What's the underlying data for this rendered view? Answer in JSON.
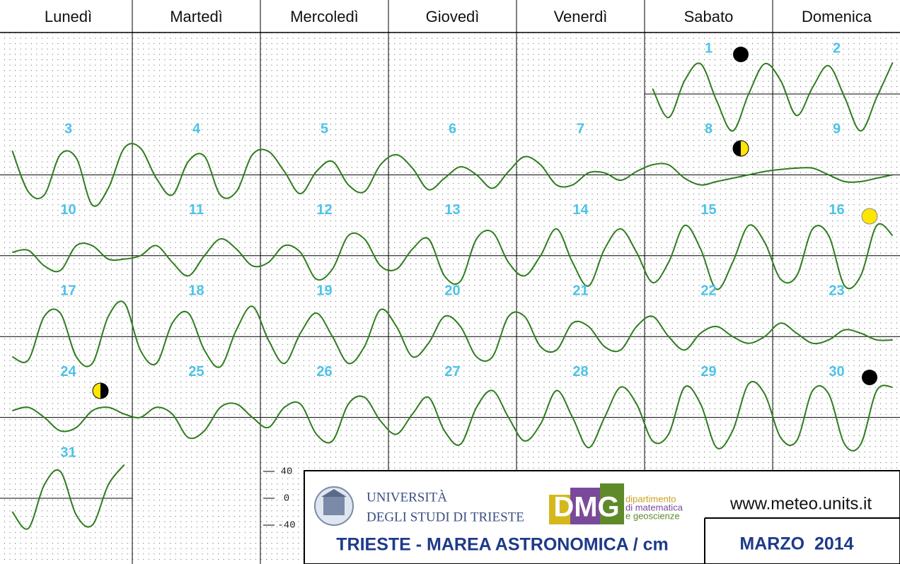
{
  "weekdays": [
    "Lunedì",
    "Martedì",
    "Mercoledì",
    "Giovedì",
    "Venerdì",
    "Sabato",
    "Domenica"
  ],
  "first_weekday_index": 5,
  "days": [
    {
      "day": 1,
      "values": [
        8,
        -35,
        20,
        45,
        -10,
        -55,
        0,
        45
      ]
    },
    {
      "day": 2,
      "values": [
        20,
        -32,
        10,
        42,
        -5,
        -55,
        -5,
        47
      ]
    },
    {
      "day": 3,
      "values": [
        36,
        -25,
        -30,
        30,
        25,
        -45,
        -20,
        40
      ]
    },
    {
      "day": 4,
      "values": [
        40,
        -5,
        -30,
        20,
        28,
        -30,
        -25,
        30
      ]
    },
    {
      "day": 5,
      "values": [
        35,
        5,
        -28,
        5,
        20,
        -15,
        -25,
        15
      ]
    },
    {
      "day": 6,
      "values": [
        30,
        10,
        -22,
        -5,
        12,
        0,
        -20,
        5
      ]
    },
    {
      "day": 7,
      "values": [
        27,
        15,
        -15,
        -15,
        3,
        3,
        -8,
        5
      ]
    },
    {
      "day": 8,
      "values": [
        15,
        15,
        -5,
        -15,
        -10,
        -5,
        0,
        5
      ]
    },
    {
      "day": 9,
      "values": [
        8,
        10,
        10,
        0,
        -10,
        -10,
        -5,
        0
      ]
    },
    {
      "day": 10,
      "values": [
        5,
        8,
        -15,
        -22,
        15,
        15,
        -5,
        -5
      ]
    },
    {
      "day": 11,
      "values": [
        0,
        15,
        -10,
        -30,
        0,
        25,
        10,
        -15
      ]
    },
    {
      "day": 12,
      "values": [
        -10,
        15,
        5,
        -35,
        -20,
        30,
        25,
        -15
      ]
    },
    {
      "day": 13,
      "values": [
        -20,
        10,
        25,
        -30,
        -38,
        25,
        35,
        -10
      ]
    },
    {
      "day": 14,
      "values": [
        -30,
        0,
        40,
        -10,
        -45,
        10,
        40,
        5
      ]
    },
    {
      "day": 15,
      "values": [
        -40,
        -10,
        45,
        10,
        -50,
        -10,
        45,
        20
      ]
    },
    {
      "day": 16,
      "values": [
        -35,
        -30,
        40,
        30,
        -45,
        -30,
        45,
        30
      ]
    },
    {
      "day": 17,
      "values": [
        -30,
        -35,
        30,
        35,
        -30,
        -40,
        30,
        50
      ]
    },
    {
      "day": 18,
      "values": [
        -20,
        -40,
        20,
        35,
        -20,
        -45,
        10,
        45
      ]
    },
    {
      "day": 19,
      "values": [
        -5,
        -40,
        5,
        35,
        0,
        -40,
        -15,
        40
      ]
    },
    {
      "day": 20,
      "values": [
        15,
        -30,
        -10,
        30,
        15,
        -30,
        -30,
        30
      ]
    },
    {
      "day": 21,
      "values": [
        30,
        -15,
        -20,
        20,
        15,
        -15,
        -20,
        15
      ]
    },
    {
      "day": 22,
      "values": [
        30,
        0,
        -20,
        5,
        15,
        0,
        -10,
        0
      ]
    },
    {
      "day": 23,
      "values": [
        20,
        5,
        -10,
        -5,
        10,
        5,
        -5,
        -5
      ]
    },
    {
      "day": 24,
      "values": [
        10,
        15,
        0,
        -20,
        -15,
        10,
        15,
        5
      ]
    },
    {
      "day": 25,
      "values": [
        0,
        15,
        5,
        -30,
        -20,
        15,
        20,
        0
      ]
    },
    {
      "day": 26,
      "values": [
        -15,
        15,
        20,
        -25,
        -35,
        20,
        30,
        -5
      ]
    },
    {
      "day": 27,
      "values": [
        -25,
        5,
        30,
        -20,
        -40,
        15,
        40,
        0
      ]
    },
    {
      "day": 28,
      "values": [
        -35,
        -10,
        40,
        0,
        -45,
        0,
        45,
        20
      ]
    },
    {
      "day": 29,
      "values": [
        -35,
        -25,
        45,
        20,
        -45,
        -20,
        50,
        35
      ]
    },
    {
      "day": 30,
      "values": [
        -30,
        -35,
        40,
        35,
        -40,
        -40,
        40,
        45
      ]
    },
    {
      "day": 31,
      "values": [
        -20,
        -45,
        20,
        40,
        -25,
        -40,
        20,
        50
      ]
    }
  ],
  "scale_ticks": [
    40,
    0,
    -40
  ],
  "footer": {
    "university_line1": "UNIVERSITÀ",
    "university_line2": "DEGLI STUDI DI TRIESTE",
    "dept_logo": "DMG",
    "dept_line1": "dipartimento",
    "dept_line2": "di matematica",
    "dept_line3": "e geoscienze",
    "website": "www.meteo.units.it",
    "title": "TRIESTE - MAREA ASTRONOMICA / cm",
    "month": "MARZO  2014"
  }
}
